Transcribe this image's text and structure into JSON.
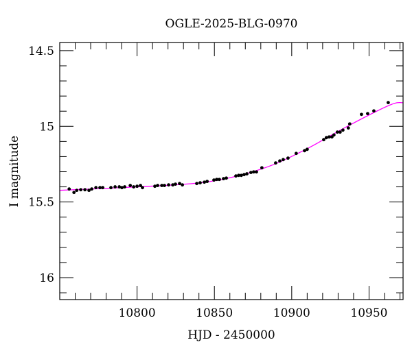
{
  "chart_data": {
    "type": "scatter",
    "title": "OGLE-2025-BLG-0970",
    "xlabel": "HJD - 2450000",
    "ylabel": "I magnitude",
    "xlim": [
      10750,
      10972
    ],
    "ylim": [
      16.145,
      14.446
    ],
    "y_inverted": true,
    "grid": false,
    "x_major_ticks": [
      10800,
      10850,
      10900,
      10950
    ],
    "x_tick_labels": [
      "10800",
      "10850",
      "10900",
      "10950"
    ],
    "x_minor_step": 10,
    "y_major_ticks": [
      14.5,
      15,
      15.5,
      16
    ],
    "y_tick_labels": [
      "14.5",
      "15",
      "15.5",
      "16"
    ],
    "y_minor_step": 0.1,
    "colors": {
      "data": "#000000",
      "model": "#ff00ff"
    },
    "series": [
      {
        "name": "data",
        "kind": "points",
        "x": [
          10756.1,
          10759.2,
          10761.0,
          10763.6,
          10766.3,
          10768.9,
          10770.7,
          10773.4,
          10776.0,
          10777.8,
          10783.1,
          10785.8,
          10788.5,
          10790.2,
          10792.0,
          10795.6,
          10797.8,
          10800.0,
          10802.2,
          10803.5,
          10811.5,
          10813.3,
          10816.0,
          10817.7,
          10820.4,
          10823.1,
          10824.8,
          10827.5,
          10829.3,
          10838.6,
          10840.8,
          10843.5,
          10845.3,
          10849.7,
          10851.5,
          10853.2,
          10855.9,
          10857.7,
          10863.9,
          10865.7,
          10867.4,
          10869.2,
          10871.0,
          10873.6,
          10875.4,
          10877.2,
          10880.7,
          10889.6,
          10892.3,
          10894.5,
          10897.6,
          10902.9,
          10908.3,
          10910.0,
          10920.7,
          10922.4,
          10924.2,
          10926.0,
          10927.3,
          10929.5,
          10931.3,
          10933.1,
          10936.6,
          10937.5,
          10945.1,
          10949.1,
          10953.1,
          10962.4
        ],
        "y": [
          15.414,
          15.437,
          15.423,
          15.419,
          15.419,
          15.423,
          15.414,
          15.405,
          15.405,
          15.405,
          15.405,
          15.4,
          15.4,
          15.405,
          15.4,
          15.391,
          15.4,
          15.396,
          15.391,
          15.405,
          15.396,
          15.391,
          15.391,
          15.391,
          15.387,
          15.387,
          15.382,
          15.378,
          15.387,
          15.378,
          15.373,
          15.369,
          15.364,
          15.355,
          15.351,
          15.351,
          15.346,
          15.342,
          15.328,
          15.324,
          15.324,
          15.319,
          15.314,
          15.305,
          15.301,
          15.301,
          15.274,
          15.242,
          15.229,
          15.22,
          15.21,
          15.179,
          15.161,
          15.152,
          15.088,
          15.075,
          15.07,
          15.07,
          15.057,
          15.038,
          15.038,
          15.025,
          15.011,
          14.984,
          14.921,
          14.916,
          14.898,
          14.843
        ]
      },
      {
        "name": "model",
        "kind": "line",
        "x": [
          10750,
          10775,
          10800,
          10822,
          10844.4,
          10866.5,
          10888.7,
          10910.9,
          10933.1,
          10955.3,
          10966.4,
          10972
        ],
        "y": [
          15.423,
          15.412,
          15.4,
          15.388,
          15.369,
          15.324,
          15.251,
          15.143,
          15.016,
          14.898,
          14.848,
          14.844
        ]
      }
    ]
  }
}
